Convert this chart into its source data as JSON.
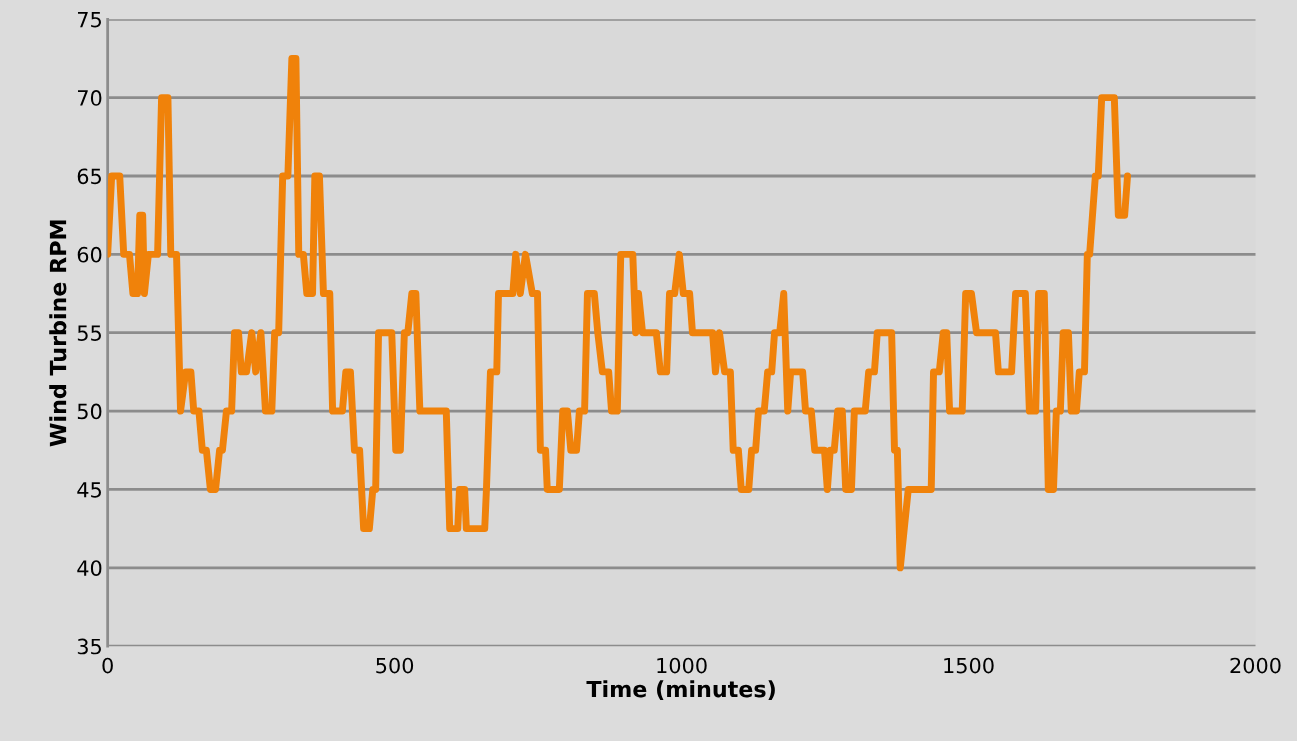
{
  "chart_data": {
    "type": "line",
    "xlabel": "Time (minutes)",
    "ylabel": "Wind Turbine RPM",
    "xlim": [
      0,
      2000
    ],
    "xticks": [
      0,
      500,
      1000,
      1500,
      2000
    ],
    "ylim": [
      35,
      75
    ],
    "yticks": [
      35,
      40,
      45,
      50,
      55,
      60,
      65,
      70,
      75
    ],
    "grid": "y",
    "marker": "none",
    "line_style": "solid",
    "series": [
      {
        "color": "#f0820a",
        "x": [
          0,
          7,
          21,
          28,
          38,
          44,
          52,
          56,
          61,
          64,
          71,
          87,
          94,
          105,
          110,
          120,
          127,
          136,
          145,
          150,
          159,
          165,
          172,
          179,
          188,
          195,
          200,
          207,
          216,
          221,
          228,
          233,
          242,
          251,
          258,
          267,
          275,
          286,
          291,
          298,
          305,
          314,
          321,
          328,
          333,
          341,
          347,
          357,
          361,
          369,
          376,
          387,
          392,
          409,
          415,
          423,
          430,
          439,
          446,
          456,
          462,
          467,
          472,
          495,
          502,
          510,
          517,
          523,
          530,
          537,
          544,
          590,
          596,
          610,
          613,
          622,
          625,
          657,
          660,
          667,
          678,
          681,
          706,
          711,
          719,
          728,
          740,
          749,
          754,
          763,
          766,
          787,
          793,
          801,
          807,
          817,
          822,
          831,
          836,
          848,
          854,
          862,
          873,
          878,
          888,
          894,
          915,
          920,
          925,
          932,
          956,
          963,
          974,
          979,
          988,
          996,
          1003,
          1014,
          1019,
          1054,
          1059,
          1066,
          1075,
          1085,
          1090,
          1099,
          1104,
          1117,
          1122,
          1129,
          1134,
          1144,
          1150,
          1157,
          1162,
          1171,
          1178,
          1185,
          1190,
          1211,
          1216,
          1226,
          1232,
          1249,
          1254,
          1259,
          1266,
          1272,
          1280,
          1286,
          1296,
          1301,
          1320,
          1326,
          1336,
          1341,
          1366,
          1371,
          1376,
          1381,
          1388,
          1395,
          1435,
          1439,
          1449,
          1456,
          1462,
          1467,
          1489,
          1495,
          1505,
          1514,
          1547,
          1552,
          1575,
          1582,
          1599,
          1606,
          1617,
          1622,
          1632,
          1639,
          1648,
          1653,
          1660,
          1665,
          1674,
          1679,
          1688,
          1693,
          1702,
          1707,
          1711,
          1721,
          1726,
          1732,
          1754,
          1761,
          1772,
          1777
        ],
        "values": [
          60,
          65,
          65,
          60,
          60,
          57.5,
          57.5,
          62.5,
          62.5,
          57.5,
          60,
          60,
          70,
          70,
          60,
          60,
          50,
          52.5,
          52.5,
          50,
          50,
          47.5,
          47.5,
          45,
          45,
          47.5,
          47.5,
          50,
          50,
          55,
          55,
          52.5,
          52.5,
          55,
          52.5,
          55,
          50,
          50,
          55,
          55,
          65,
          65,
          72.5,
          72.5,
          60,
          60,
          57.5,
          57.5,
          65,
          65,
          57.5,
          57.5,
          50,
          50,
          52.5,
          52.5,
          47.5,
          47.5,
          42.5,
          42.5,
          45,
          45,
          55,
          55,
          47.5,
          47.5,
          55,
          55,
          57.5,
          57.5,
          50,
          50,
          42.5,
          42.5,
          45,
          45,
          42.5,
          42.5,
          45,
          52.5,
          52.5,
          57.5,
          57.5,
          60,
          57.5,
          60,
          57.5,
          57.5,
          47.5,
          47.5,
          45,
          45,
          50,
          50,
          47.5,
          47.5,
          50,
          50,
          57.5,
          57.5,
          55,
          52.5,
          52.5,
          50,
          50,
          60,
          60,
          55,
          57.5,
          55,
          55,
          52.5,
          52.5,
          57.5,
          57.5,
          60,
          57.5,
          57.5,
          55,
          55,
          52.5,
          55,
          52.5,
          52.5,
          47.5,
          47.5,
          45,
          45,
          47.5,
          47.5,
          50,
          50,
          52.5,
          52.5,
          55,
          55,
          57.5,
          50,
          52.5,
          52.5,
          50,
          50,
          47.5,
          47.5,
          45,
          47.5,
          47.5,
          50,
          50,
          45,
          45,
          50,
          50,
          52.5,
          52.5,
          55,
          55,
          47.5,
          47.5,
          40,
          42.5,
          45,
          45,
          52.5,
          52.5,
          55,
          55,
          50,
          50,
          57.5,
          57.5,
          55,
          55,
          52.5,
          52.5,
          57.5,
          57.5,
          50,
          50,
          57.5,
          57.5,
          45,
          45,
          50,
          50,
          55,
          55,
          50,
          50,
          52.5,
          52.5,
          60,
          60,
          65,
          65,
          70,
          70,
          62.5,
          62.5,
          65
        ]
      }
    ]
  }
}
